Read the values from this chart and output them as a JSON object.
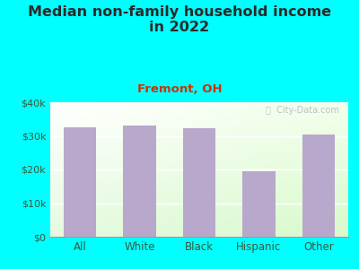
{
  "title": "Median non-family household income\nin 2022",
  "subtitle": "Fremont, OH",
  "categories": [
    "All",
    "White",
    "Black",
    "Hispanic",
    "Other"
  ],
  "values": [
    32500,
    33200,
    32200,
    19500,
    30500
  ],
  "bar_color": "#b8a8cc",
  "bg_color": "#00ffff",
  "title_color": "#2a2a2a",
  "subtitle_color": "#cc3300",
  "tick_label_color": "#3a5a3a",
  "ylim": [
    0,
    40000
  ],
  "yticks": [
    0,
    10000,
    20000,
    30000,
    40000
  ],
  "ytick_labels": [
    "$0",
    "$10k",
    "$20k",
    "$30k",
    "$40k"
  ],
  "watermark": "ⓘ  City-Data.com"
}
